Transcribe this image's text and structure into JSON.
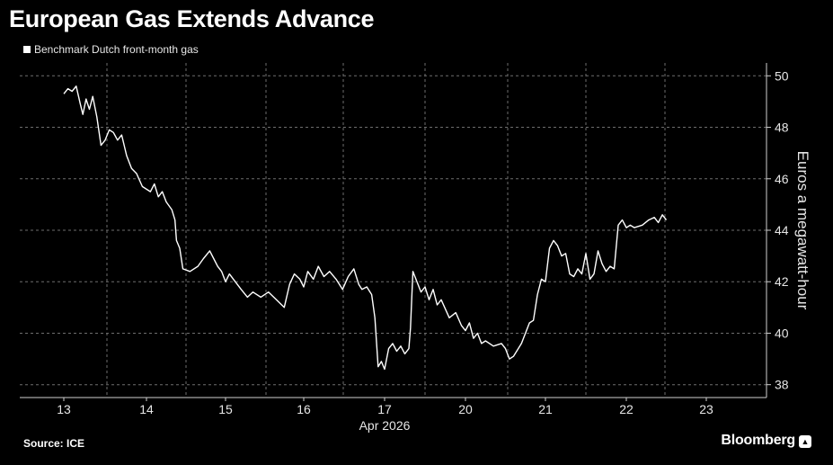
{
  "title": "European Gas Extends Advance",
  "legend": "Benchmark Dutch front-month gas",
  "source": "Source: ICE",
  "brand": "Bloomberg",
  "brand_badge_icon": "chart-badge-icon",
  "colors": {
    "background": "#000000",
    "line": "#ffffff",
    "grid": "#6e6e6e"
  },
  "chart_data": {
    "type": "line",
    "title": "European Gas Extends Advance",
    "ylabel": "Euros a megawatt-hour",
    "xlabel": "Apr 2026",
    "x_ticks": [
      "13",
      "14",
      "15",
      "16",
      "17",
      "20",
      "21",
      "22",
      "23"
    ],
    "y_ticks": [
      38,
      40,
      42,
      44,
      46,
      48,
      50
    ],
    "ylim": [
      37.5,
      50.5
    ],
    "grid": true,
    "legend_position": "top-left",
    "series": [
      {
        "name": "Benchmark Dutch front-month gas",
        "points": [
          [
            0.0,
            49.3
          ],
          [
            0.05,
            49.5
          ],
          [
            0.1,
            49.4
          ],
          [
            0.15,
            49.6
          ],
          [
            0.2,
            48.9
          ],
          [
            0.23,
            48.5
          ],
          [
            0.27,
            49.1
          ],
          [
            0.31,
            48.7
          ],
          [
            0.35,
            49.2
          ],
          [
            0.4,
            48.4
          ],
          [
            0.45,
            47.3
          ],
          [
            0.5,
            47.5
          ],
          [
            0.55,
            47.9
          ],
          [
            0.6,
            47.8
          ],
          [
            0.65,
            47.5
          ],
          [
            0.7,
            47.7
          ],
          [
            0.76,
            46.9
          ],
          [
            0.82,
            46.4
          ],
          [
            0.88,
            46.2
          ],
          [
            0.95,
            45.7
          ],
          [
            1.05,
            45.5
          ],
          [
            1.1,
            45.8
          ],
          [
            1.15,
            45.3
          ],
          [
            1.2,
            45.5
          ],
          [
            1.25,
            45.1
          ],
          [
            1.32,
            44.8
          ],
          [
            1.36,
            44.4
          ],
          [
            1.38,
            43.6
          ],
          [
            1.42,
            43.3
          ],
          [
            1.46,
            42.5
          ],
          [
            1.55,
            42.4
          ],
          [
            1.65,
            42.6
          ],
          [
            1.72,
            42.9
          ],
          [
            1.8,
            43.2
          ],
          [
            1.85,
            42.9
          ],
          [
            1.9,
            42.6
          ],
          [
            1.95,
            42.4
          ],
          [
            2.0,
            42.0
          ],
          [
            2.05,
            42.3
          ],
          [
            2.1,
            42.1
          ],
          [
            2.2,
            41.7
          ],
          [
            2.28,
            41.4
          ],
          [
            2.35,
            41.6
          ],
          [
            2.45,
            41.4
          ],
          [
            2.55,
            41.6
          ],
          [
            2.65,
            41.3
          ],
          [
            2.75,
            41.0
          ],
          [
            2.82,
            41.9
          ],
          [
            2.88,
            42.3
          ],
          [
            2.95,
            42.1
          ],
          [
            3.0,
            41.8
          ],
          [
            3.05,
            42.4
          ],
          [
            3.12,
            42.1
          ],
          [
            3.18,
            42.6
          ],
          [
            3.25,
            42.2
          ],
          [
            3.32,
            42.4
          ],
          [
            3.4,
            42.1
          ],
          [
            3.48,
            41.7
          ],
          [
            3.55,
            42.2
          ],
          [
            3.62,
            42.5
          ],
          [
            3.68,
            41.9
          ],
          [
            3.72,
            41.7
          ],
          [
            3.78,
            41.8
          ],
          [
            3.84,
            41.5
          ],
          [
            3.88,
            40.6
          ],
          [
            3.92,
            38.7
          ],
          [
            3.96,
            38.9
          ],
          [
            4.0,
            38.6
          ],
          [
            4.05,
            39.4
          ],
          [
            4.1,
            39.6
          ],
          [
            4.15,
            39.3
          ],
          [
            4.2,
            39.5
          ],
          [
            4.25,
            39.2
          ],
          [
            4.3,
            39.4
          ],
          [
            4.32,
            40.2
          ],
          [
            4.35,
            42.4
          ],
          [
            4.4,
            42.0
          ],
          [
            4.45,
            41.6
          ],
          [
            4.5,
            41.8
          ],
          [
            4.55,
            41.3
          ],
          [
            4.6,
            41.7
          ],
          [
            4.65,
            41.1
          ],
          [
            4.7,
            41.3
          ],
          [
            4.8,
            40.6
          ],
          [
            4.88,
            40.8
          ],
          [
            4.95,
            40.3
          ],
          [
            5.0,
            40.1
          ],
          [
            5.05,
            40.4
          ],
          [
            5.1,
            39.8
          ],
          [
            5.15,
            40.0
          ],
          [
            5.2,
            39.6
          ],
          [
            5.25,
            39.7
          ],
          [
            5.35,
            39.5
          ],
          [
            5.45,
            39.6
          ],
          [
            5.5,
            39.4
          ],
          [
            5.55,
            39.0
          ],
          [
            5.6,
            39.1
          ],
          [
            5.7,
            39.6
          ],
          [
            5.8,
            40.4
          ],
          [
            5.85,
            40.5
          ],
          [
            5.9,
            41.5
          ],
          [
            5.95,
            42.1
          ],
          [
            6.0,
            42.0
          ],
          [
            6.05,
            43.3
          ],
          [
            6.1,
            43.6
          ],
          [
            6.15,
            43.4
          ],
          [
            6.2,
            43.0
          ],
          [
            6.25,
            43.1
          ],
          [
            6.3,
            42.3
          ],
          [
            6.35,
            42.2
          ],
          [
            6.4,
            42.5
          ],
          [
            6.45,
            42.3
          ],
          [
            6.5,
            43.1
          ],
          [
            6.55,
            42.1
          ],
          [
            6.6,
            42.3
          ],
          [
            6.65,
            43.2
          ],
          [
            6.7,
            42.7
          ],
          [
            6.75,
            42.4
          ],
          [
            6.8,
            42.6
          ],
          [
            6.85,
            42.5
          ],
          [
            6.9,
            44.2
          ],
          [
            6.95,
            44.4
          ],
          [
            7.0,
            44.1
          ],
          [
            7.05,
            44.2
          ],
          [
            7.1,
            44.1
          ],
          [
            7.2,
            44.2
          ],
          [
            7.28,
            44.4
          ],
          [
            7.35,
            44.5
          ],
          [
            7.4,
            44.3
          ],
          [
            7.45,
            44.6
          ],
          [
            7.5,
            44.4
          ]
        ]
      }
    ]
  }
}
